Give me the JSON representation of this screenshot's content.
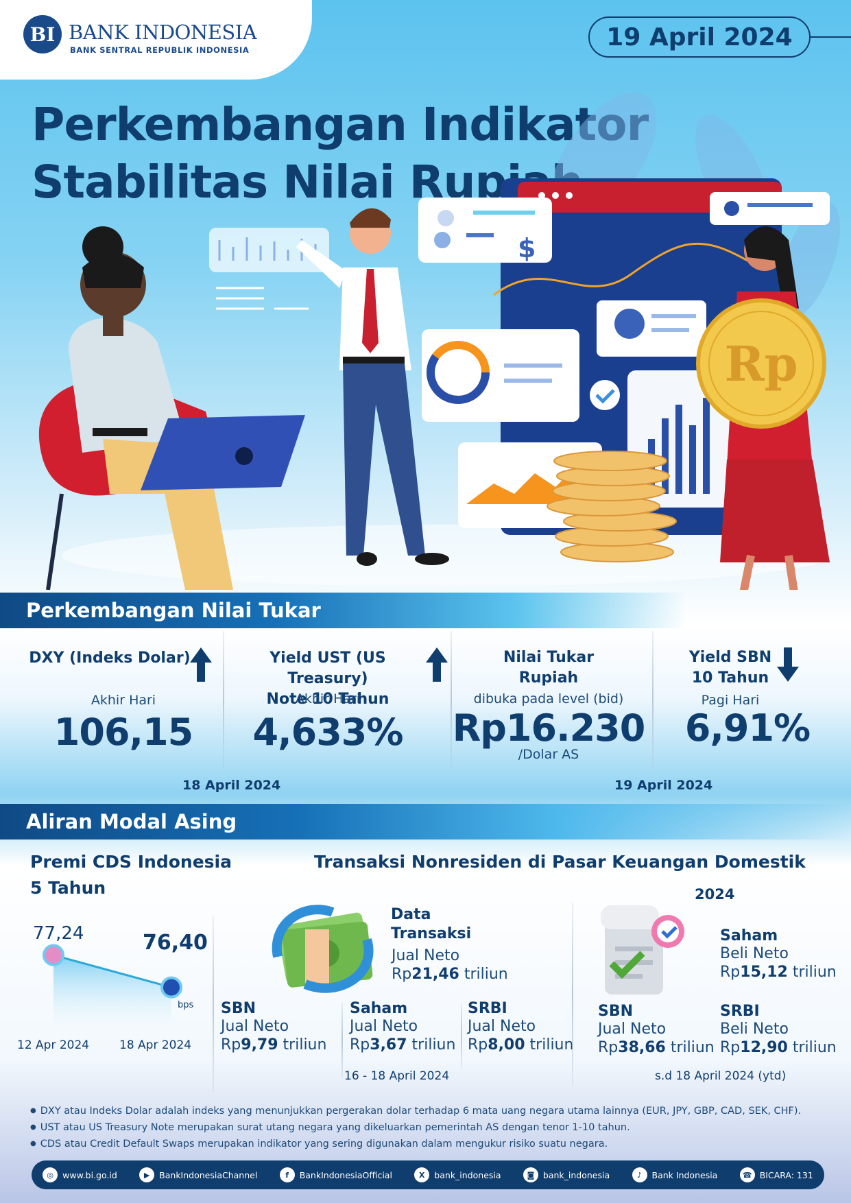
{
  "header": {
    "logo_mark": "BI",
    "bank_name": "BANK INDONESIA",
    "bank_subtitle": "BANK SENTRAL REPUBLIK INDONESIA",
    "date": "19 April 2024",
    "title_line1": "Perkembangan Indikator",
    "title_line2": "Stabilitas Nilai Rupiah",
    "illustration": {
      "coin_label": "Rp",
      "dollar_sign": "$"
    }
  },
  "exchange_section": {
    "heading": "Perkembangan Nilai Tukar",
    "indicators": [
      {
        "title_line1": "DXY (Indeks Dolar)",
        "title_line2": "",
        "subtitle": "Akhir Hari",
        "value": "106,15",
        "unit": "",
        "trend": "up",
        "trend_icon": "arrow-up-icon"
      },
      {
        "title_line1": "Yield UST (US Treasury)",
        "title_line2": "Note  10 Tahun",
        "subtitle": "Akhir Hari",
        "value": "4,633%",
        "unit": "",
        "trend": "up",
        "trend_icon": "arrow-up-icon"
      },
      {
        "title_line1": "Nilai Tukar",
        "title_line2": "Rupiah",
        "subtitle": "dibuka pada level (bid)",
        "value": "Rp16.230",
        "unit": "/Dolar AS",
        "trend": "",
        "trend_icon": ""
      },
      {
        "title_line1": "Yield SBN",
        "title_line2": "10 Tahun",
        "subtitle": "Pagi Hari",
        "value": "6,91%",
        "unit": "",
        "trend": "down",
        "trend_icon": "arrow-down-icon"
      }
    ],
    "date_left": "18 April 2024",
    "date_right": "19 April 2024"
  },
  "capital_section": {
    "heading": "Aliran Modal Asing",
    "cds": {
      "title_line1": "Premi CDS Indonesia",
      "title_line2": "5 Tahun",
      "unit": "bps",
      "points": [
        {
          "date": "12 Apr 2024",
          "value": 77.24,
          "label": "77,24"
        },
        {
          "date": "18 Apr 2024",
          "value": 76.4,
          "label": "76,40"
        }
      ]
    },
    "nonresident": {
      "title": "Transaksi Nonresiden di Pasar Keuangan Domestik",
      "weekly": {
        "data_label_line1": "Data",
        "data_label_line2": "Transaksi",
        "total_action": "Jual Neto",
        "total_prefix": "Rp",
        "total_value": "21,46",
        "total_suffix": "triliun",
        "items": [
          {
            "name": "SBN",
            "action": "Jual Neto",
            "prefix": "Rp",
            "value": "9,79",
            "suffix": "triliun"
          },
          {
            "name": "Saham",
            "action": "Jual Neto",
            "prefix": "Rp",
            "value": "3,67",
            "suffix": "triliun"
          },
          {
            "name": "SRBI",
            "action": "Jual Neto",
            "prefix": "Rp",
            "value": "8,00",
            "suffix": "triliun"
          }
        ],
        "period": "16 - 18 April 2024"
      },
      "ytd": {
        "year": "2024",
        "items": [
          {
            "name": "Saham",
            "action": "Beli Neto",
            "prefix": "Rp",
            "value": "15,12",
            "suffix": "triliun"
          },
          {
            "name": "SBN",
            "action": "Jual Neto",
            "prefix": "Rp",
            "value": "38,66",
            "suffix": "triliun"
          },
          {
            "name": "SRBI",
            "action": "Beli Neto",
            "prefix": "Rp",
            "value": "12,90",
            "suffix": "triliun"
          }
        ],
        "period": "s.d 18 April 2024 (ytd)"
      }
    }
  },
  "notes": [
    "DXY atau Indeks Dolar adalah indeks yang menunjukkan pergerakan dolar terhadap 6 mata uang negara utama lainnya (EUR, JPY, GBP, CAD, SEK, CHF).",
    "UST atau US Treasury Note merupakan surat utang negara yang dikeluarkan  pemerintah AS dengan tenor 1-10 tahun.",
    "CDS atau Credit Default Swaps merupakan indikator  yang sering digunakan dalam mengukur risiko suatu negara."
  ],
  "footer": [
    {
      "icon": "globe-icon",
      "glyph": "◎",
      "label": "www.bi.go.id"
    },
    {
      "icon": "youtube-icon",
      "glyph": "▶",
      "label": "BankIndonesiaChannel"
    },
    {
      "icon": "facebook-icon",
      "glyph": "f",
      "label": "BankIndonesiaOfficial"
    },
    {
      "icon": "x-icon",
      "glyph": "X",
      "label": "bank_indonesia"
    },
    {
      "icon": "instagram-icon",
      "glyph": "◙",
      "label": "bank_indonesia"
    },
    {
      "icon": "tiktok-icon",
      "glyph": "♪",
      "label": "Bank Indonesia"
    },
    {
      "icon": "bicara-icon",
      "glyph": "☎",
      "label": "BICARA: 131"
    }
  ],
  "colors": {
    "navy": "#0f3d6e",
    "accent_red": "#c8202f",
    "sky": "#5cc3ef",
    "gold": "#f2c94c"
  }
}
